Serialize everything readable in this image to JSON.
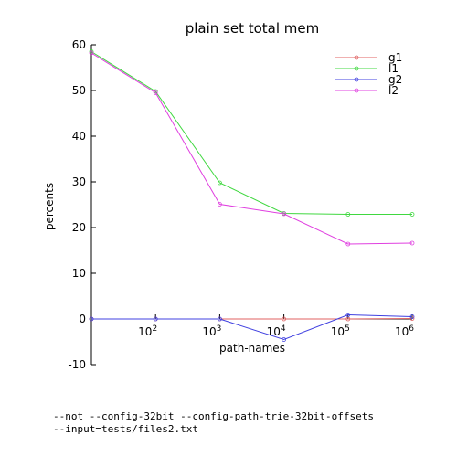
{
  "chart_data": {
    "type": "line",
    "title": "plain set total mem",
    "xlabel": "path-names",
    "ylabel": "percents",
    "x_scale": "log10",
    "xlim": [
      10,
      1000000
    ],
    "ylim": [
      -10,
      60
    ],
    "y_ticks": [
      -10,
      0,
      10,
      20,
      30,
      40,
      50,
      60
    ],
    "x_ticks": [
      {
        "value": 100,
        "base": "10",
        "exp": "2"
      },
      {
        "value": 1000,
        "base": "10",
        "exp": "3"
      },
      {
        "value": 10000,
        "base": "10",
        "exp": "4"
      },
      {
        "value": 100000,
        "base": "10",
        "exp": "5"
      },
      {
        "value": 1000000,
        "base": "10",
        "exp": "6"
      }
    ],
    "x": [
      10,
      100,
      1000,
      10000,
      100000,
      1000000
    ],
    "legend_position": "top-right",
    "series": [
      {
        "name": "g1",
        "color": "#e06060",
        "values": [
          0.0,
          0.0,
          0.0,
          0.0,
          0.0,
          0.1
        ]
      },
      {
        "name": "l1",
        "color": "#40d840",
        "values": [
          58.5,
          49.8,
          29.8,
          23.1,
          22.9,
          22.9
        ]
      },
      {
        "name": "g2",
        "color": "#4040e0",
        "values": [
          0.0,
          0.0,
          0.0,
          -4.5,
          0.9,
          0.5
        ]
      },
      {
        "name": "l2",
        "color": "#e040e0",
        "values": [
          58.2,
          49.5,
          25.1,
          23.0,
          16.4,
          16.6
        ]
      }
    ]
  },
  "notes": {
    "line1": "--not --config-32bit --config-path-trie-32bit-offsets",
    "line2": "--input=tests/files2.txt"
  }
}
